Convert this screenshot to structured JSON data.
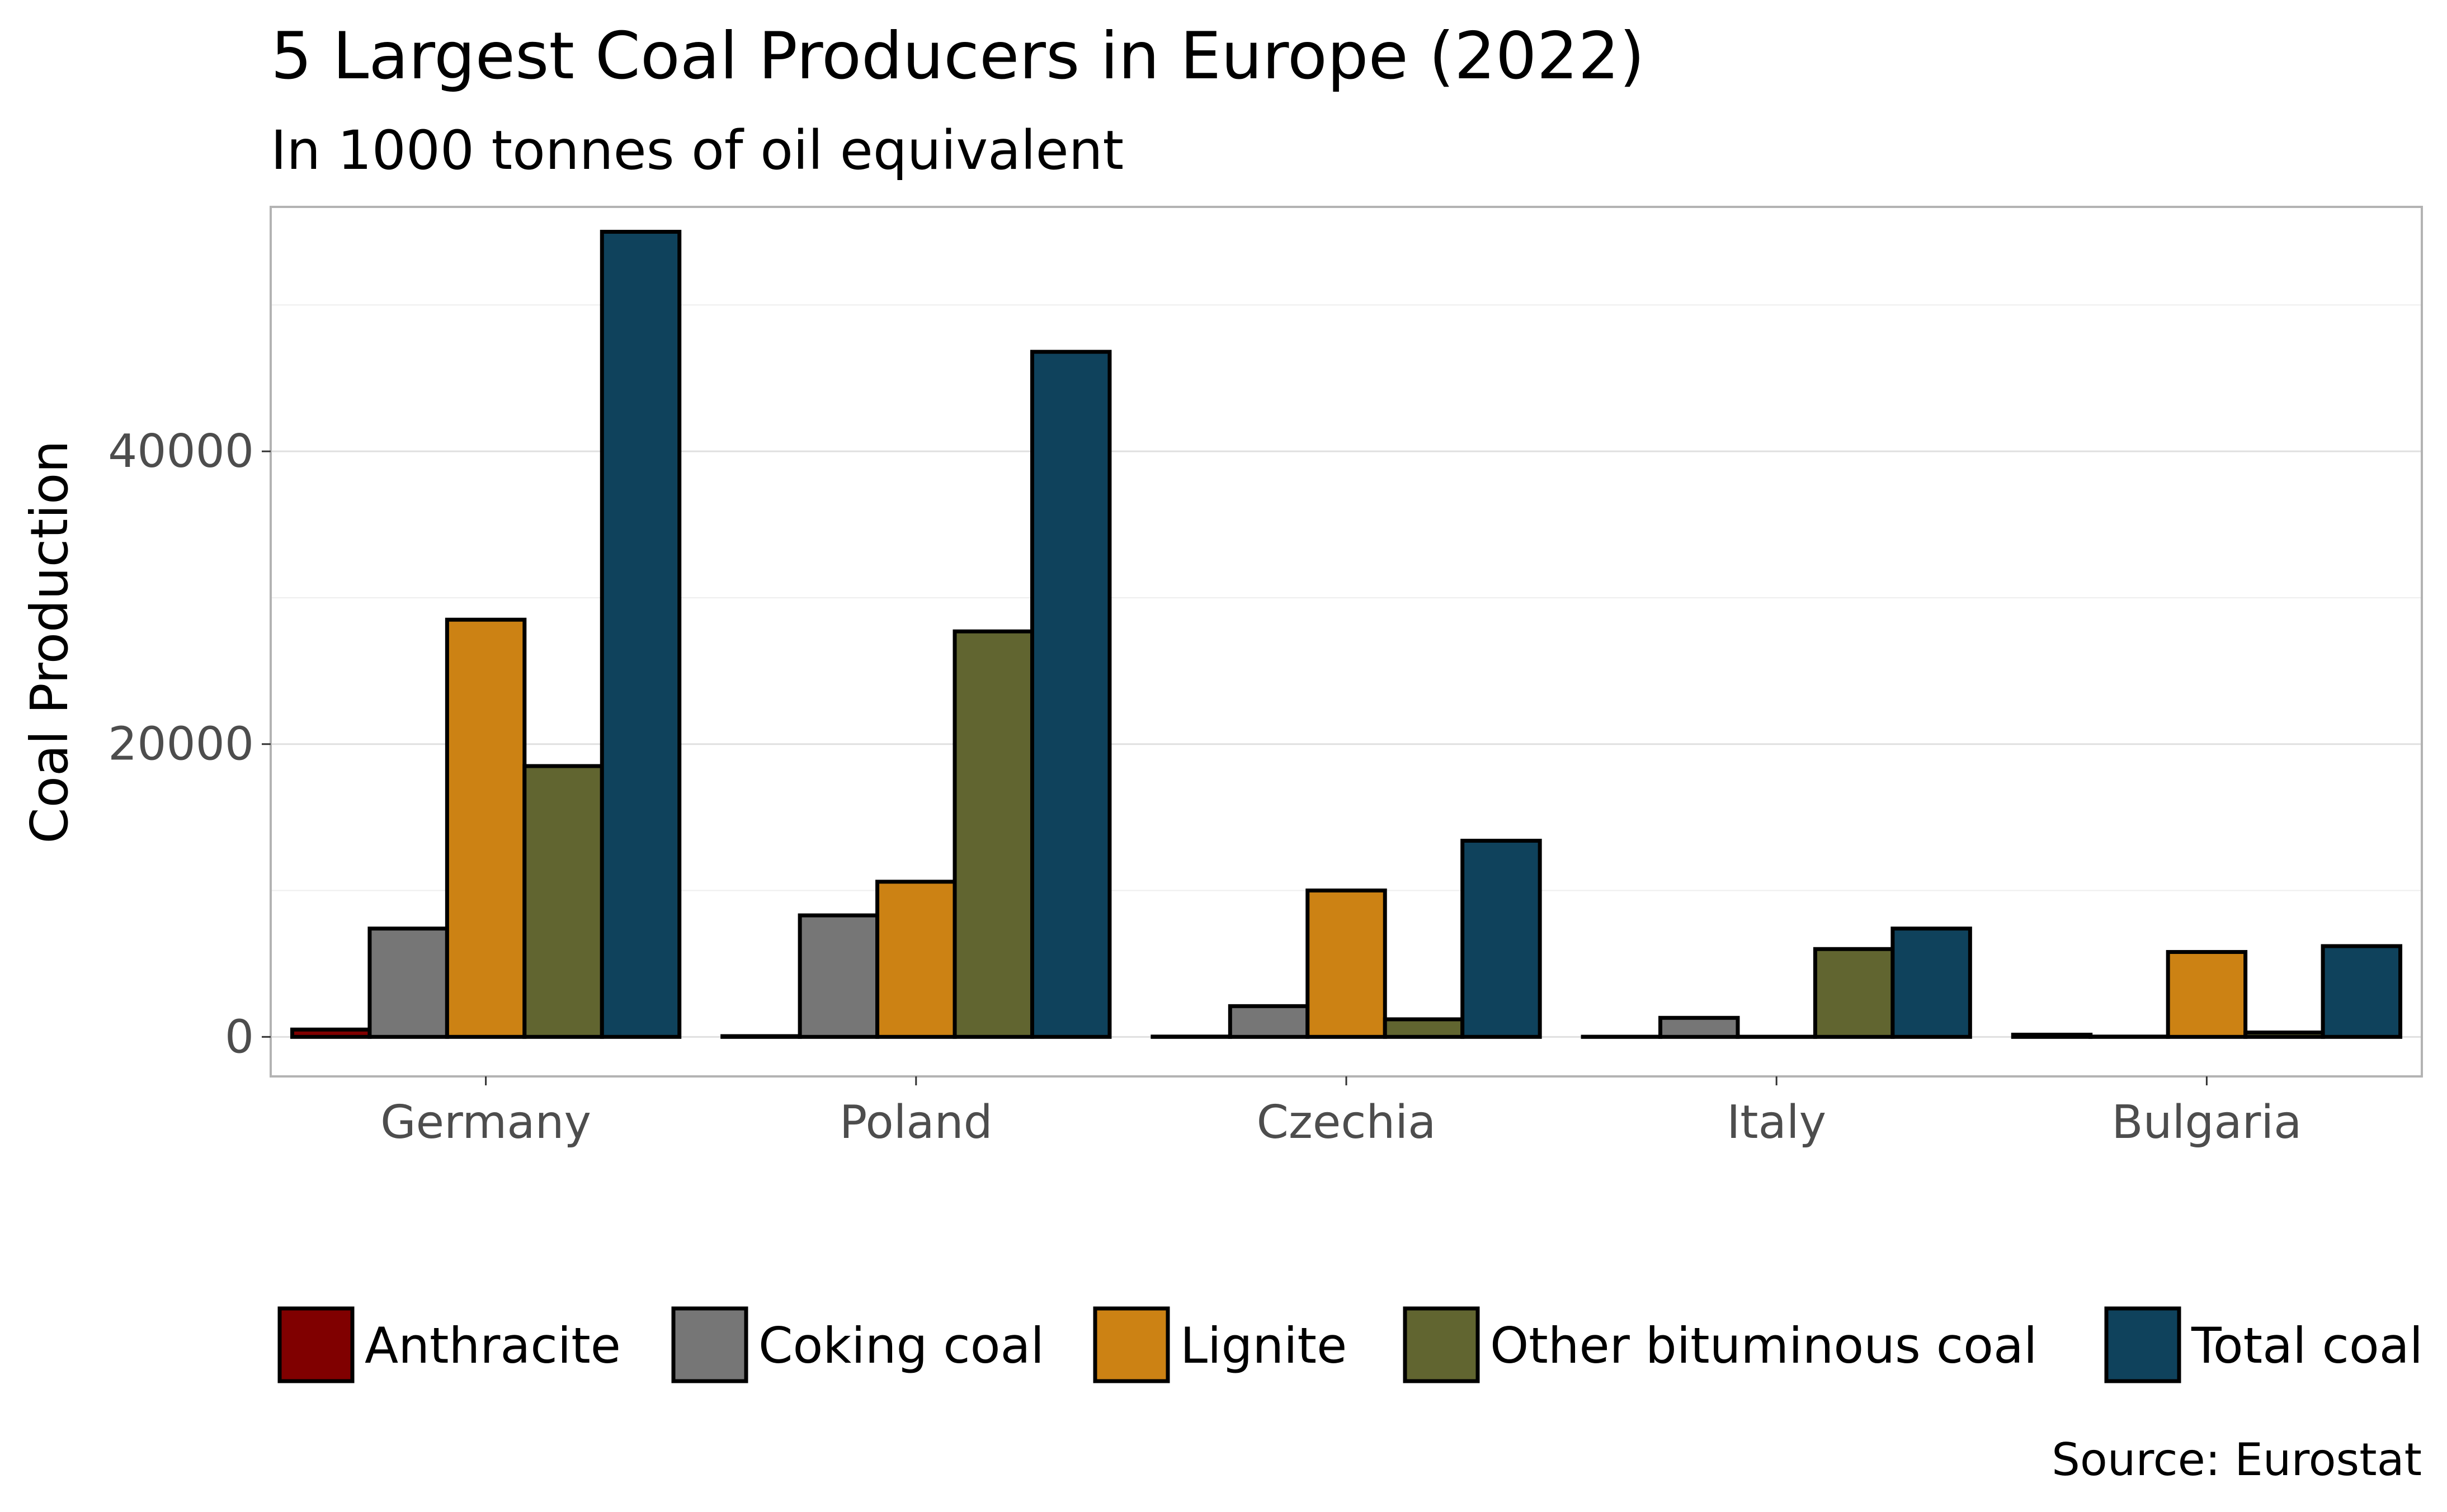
{
  "chart_data": {
    "type": "bar",
    "title": "5 Largest Coal Producers in Europe (2022)",
    "subtitle": "In 1000 tonnes of oil equivalent",
    "xlabel": "",
    "ylabel": "Coal Production",
    "caption": "Source: Eurostat",
    "categories": [
      "Germany",
      "Poland",
      "Czechia",
      "Italy",
      "Bulgaria"
    ],
    "series": [
      {
        "name": "Anthracite",
        "color": "#800000",
        "values": [
          500,
          50,
          20,
          10,
          150
        ]
      },
      {
        "name": "Coking coal",
        "color": "#767676",
        "values": [
          7400,
          8300,
          2100,
          1300,
          20
        ]
      },
      {
        "name": "Lignite",
        "color": "#CC8214",
        "values": [
          28500,
          10600,
          10000,
          10,
          5800
        ]
      },
      {
        "name": "Other bituminous coal",
        "color": "#616530",
        "values": [
          18500,
          27700,
          1200,
          6000,
          300
        ]
      },
      {
        "name": "Total coal",
        "color": "#0F425C",
        "values": [
          55000,
          46800,
          13400,
          7400,
          6200
        ]
      }
    ],
    "ylim": [
      -2700,
      56700
    ],
    "yticks": [
      0,
      20000,
      40000
    ],
    "grid": true,
    "legend_position": "bottom"
  }
}
